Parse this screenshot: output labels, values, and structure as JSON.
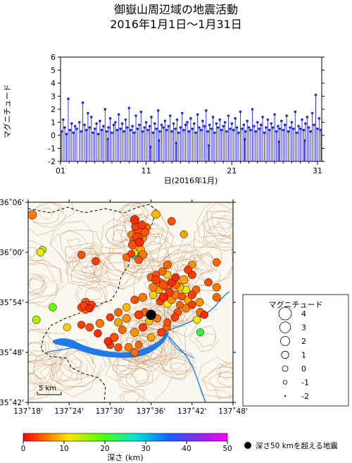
{
  "title_line1": "御嶽山周辺域の地震活動",
  "title_line2": "2016年1月1日～1月31日",
  "colors": {
    "stem": "#2222ee",
    "dot": "#1b2bd8",
    "contour": "#c9925c",
    "water": "#1f7be6",
    "border": "#000000"
  },
  "chart_data": [
    {
      "type": "stem",
      "ylabel": "マグニチュード",
      "xlabel": "日(2016年1月)",
      "xlim": [
        1,
        31.5
      ],
      "ylim": [
        -2,
        6
      ],
      "yticks": [
        "-2",
        "-1",
        "0",
        "1",
        "2",
        "3",
        "4",
        "5",
        "6"
      ],
      "xticks": [
        {
          "day": 1,
          "label": "01"
        },
        {
          "day": 11,
          "label": "11"
        },
        {
          "day": 21,
          "label": "21"
        },
        {
          "day": 31,
          "label": "31"
        }
      ],
      "events": [
        [
          1.1,
          0.3
        ],
        [
          1.3,
          1.2
        ],
        [
          1.5,
          0.6
        ],
        [
          1.7,
          0.1
        ],
        [
          1.9,
          2.8
        ],
        [
          2.1,
          0.4
        ],
        [
          2.3,
          0.9
        ],
        [
          2.5,
          0.2
        ],
        [
          2.7,
          0.7
        ],
        [
          2.9,
          0.5
        ],
        [
          3.2,
          1.0
        ],
        [
          3.4,
          0.3
        ],
        [
          3.6,
          2.5
        ],
        [
          3.8,
          0.8
        ],
        [
          4.0,
          0.4
        ],
        [
          4.2,
          1.7
        ],
        [
          4.4,
          0.6
        ],
        [
          4.6,
          1.4
        ],
        [
          4.8,
          0.2
        ],
        [
          5.0,
          0.5
        ],
        [
          5.2,
          0.9
        ],
        [
          5.4,
          0.1
        ],
        [
          5.6,
          1.1
        ],
        [
          5.8,
          0.4
        ],
        [
          6.0,
          0.7
        ],
        [
          6.2,
          2.0
        ],
        [
          6.4,
          0.3
        ],
        [
          6.6,
          0.6
        ],
        [
          6.8,
          1.3
        ],
        [
          7.0,
          0.2
        ],
        [
          7.2,
          0.8
        ],
        [
          7.4,
          1.0
        ],
        [
          7.6,
          0.4
        ],
        [
          7.8,
          1.6
        ],
        [
          8.0,
          0.5
        ],
        [
          8.2,
          0.9
        ],
        [
          8.4,
          0.3
        ],
        [
          8.6,
          1.2
        ],
        [
          8.8,
          0.6
        ],
        [
          9.0,
          2.1
        ],
        [
          9.2,
          0.4
        ],
        [
          9.4,
          0.7
        ],
        [
          9.6,
          0.2
        ],
        [
          9.8,
          1.5
        ],
        [
          10.0,
          0.5
        ],
        [
          10.2,
          0.8
        ],
        [
          10.4,
          1.8
        ],
        [
          10.6,
          0.3
        ],
        [
          10.8,
          0.6
        ],
        [
          11.0,
          1.0
        ],
        [
          11.2,
          0.4
        ],
        [
          11.4,
          0.7
        ],
        [
          11.6,
          1.4
        ],
        [
          11.8,
          0.2
        ],
        [
          12.0,
          0.9
        ],
        [
          12.2,
          0.5
        ],
        [
          12.4,
          1.9
        ],
        [
          12.6,
          0.3
        ],
        [
          12.8,
          0.8
        ],
        [
          13.0,
          0.6
        ],
        [
          13.2,
          1.1
        ],
        [
          13.4,
          0.4
        ],
        [
          13.6,
          0.7
        ],
        [
          13.8,
          1.5
        ],
        [
          14.0,
          0.3
        ],
        [
          14.2,
          0.9
        ],
        [
          14.4,
          0.5
        ],
        [
          14.6,
          1.2
        ],
        [
          14.8,
          0.2
        ],
        [
          15.0,
          0.6
        ],
        [
          15.2,
          1.7
        ],
        [
          15.4,
          0.4
        ],
        [
          15.6,
          0.8
        ],
        [
          15.8,
          1.0
        ],
        [
          16.0,
          0.3
        ],
        [
          16.2,
          1.3
        ],
        [
          16.4,
          0.5
        ],
        [
          16.6,
          0.9
        ],
        [
          16.8,
          0.2
        ],
        [
          17.0,
          1.6
        ],
        [
          17.2,
          0.6
        ],
        [
          17.4,
          0.4
        ],
        [
          17.6,
          1.1
        ],
        [
          17.8,
          0.7
        ],
        [
          18.0,
          1.9
        ],
        [
          18.2,
          0.3
        ],
        [
          18.4,
          0.8
        ],
        [
          18.6,
          0.5
        ],
        [
          18.8,
          1.4
        ],
        [
          19.0,
          0.2
        ],
        [
          19.2,
          0.9
        ],
        [
          19.4,
          0.6
        ],
        [
          19.6,
          1.2
        ],
        [
          19.8,
          0.4
        ],
        [
          20.0,
          0.7
        ],
        [
          20.2,
          1.0
        ],
        [
          20.4,
          0.3
        ],
        [
          20.6,
          1.5
        ],
        [
          20.8,
          0.5
        ],
        [
          21.0,
          0.9
        ],
        [
          21.2,
          0.4
        ],
        [
          21.4,
          1.3
        ],
        [
          21.6,
          0.6
        ],
        [
          21.8,
          0.2
        ],
        [
          22.0,
          1.8
        ],
        [
          22.2,
          0.5
        ],
        [
          22.4,
          0.8
        ],
        [
          22.6,
          0.3
        ],
        [
          22.8,
          1.1
        ],
        [
          23.0,
          0.6
        ],
        [
          23.2,
          0.4
        ],
        [
          23.4,
          2.0
        ],
        [
          23.6,
          0.7
        ],
        [
          23.8,
          0.3
        ],
        [
          24.0,
          1.0
        ],
        [
          24.2,
          0.5
        ],
        [
          24.4,
          0.8
        ],
        [
          24.6,
          1.4
        ],
        [
          24.8,
          0.2
        ],
        [
          25.0,
          0.6
        ],
        [
          25.2,
          1.2
        ],
        [
          25.4,
          0.4
        ],
        [
          25.6,
          0.9
        ],
        [
          25.8,
          0.6
        ],
        [
          26.0,
          1.6
        ],
        [
          26.2,
          0.3
        ],
        [
          26.4,
          0.7
        ],
        [
          26.6,
          0.5
        ],
        [
          26.8,
          1.1
        ],
        [
          27.0,
          0.4
        ],
        [
          27.2,
          0.8
        ],
        [
          27.4,
          1.5
        ],
        [
          27.6,
          0.3
        ],
        [
          27.8,
          0.6
        ],
        [
          28.0,
          1.0
        ],
        [
          28.2,
          0.5
        ],
        [
          28.4,
          1.8
        ],
        [
          28.6,
          0.2
        ],
        [
          28.8,
          0.7
        ],
        [
          29.0,
          0.5
        ],
        [
          29.2,
          1.2
        ],
        [
          29.4,
          0.4
        ],
        [
          29.6,
          0.9
        ],
        [
          29.8,
          1.4
        ],
        [
          30.0,
          0.6
        ],
        [
          30.2,
          0.3
        ],
        [
          30.4,
          1.7
        ],
        [
          30.6,
          0.8
        ],
        [
          30.8,
          3.1
        ],
        [
          31.0,
          0.5
        ],
        [
          31.2,
          1.3
        ],
        [
          31.4,
          0.4
        ],
        [
          11.5,
          -0.9
        ],
        [
          12.5,
          -0.4
        ],
        [
          14.5,
          -0.6
        ],
        [
          18.3,
          -0.8
        ],
        [
          22.5,
          -0.3
        ],
        [
          26.5,
          -0.5
        ],
        [
          6.5,
          -0.3
        ],
        [
          29.5,
          -0.4
        ]
      ]
    },
    {
      "type": "scatter",
      "x_ticklabels": [
        "137˚18'",
        "137˚24'",
        "137˚30'",
        "137˚36'",
        "137˚42'",
        "137˚48'"
      ],
      "y_ticklabels": [
        "36˚06'",
        "36˚00'",
        "35˚54'",
        "35˚48'",
        "35˚42'"
      ],
      "xlim": [
        137.3,
        137.8
      ],
      "ylim": [
        35.7,
        36.1
      ],
      "scalebar_label": "5 km",
      "colorbar": {
        "label": "深さ (km)",
        "ticks": [
          "0",
          "10",
          "20",
          "30",
          "40",
          "50"
        ],
        "range": [
          0,
          50
        ]
      },
      "deep_event_label": "深さ50 kmを超える地震",
      "legend": {
        "title": "マグニチュード",
        "entries": [
          "4",
          "3",
          "2",
          "1",
          "0",
          "-1",
          "-2"
        ]
      },
      "points": [
        [
          137.56,
          36.065,
          1.8,
          2
        ],
        [
          137.562,
          36.052,
          1.5,
          3
        ],
        [
          137.57,
          36.045,
          2.0,
          4
        ],
        [
          137.575,
          36.038,
          1.4,
          6
        ],
        [
          137.566,
          36.03,
          1.9,
          3
        ],
        [
          137.558,
          36.024,
          1.3,
          5
        ],
        [
          137.572,
          36.02,
          1.6,
          2
        ],
        [
          137.58,
          36.028,
          1.2,
          7
        ],
        [
          137.585,
          36.04,
          1.5,
          4
        ],
        [
          137.552,
          36.035,
          1.1,
          6
        ],
        [
          137.578,
          36.055,
          1.3,
          3
        ],
        [
          137.59,
          36.05,
          1.0,
          5
        ],
        [
          137.568,
          36.012,
          1.4,
          9
        ],
        [
          137.555,
          36.015,
          1.7,
          4
        ],
        [
          137.575,
          36.005,
          1.2,
          8
        ],
        [
          137.56,
          36.0,
          1.0,
          12
        ],
        [
          137.58,
          35.995,
          1.6,
          6
        ],
        [
          137.54,
          35.99,
          1.1,
          5
        ],
        [
          137.57,
          35.985,
          1.3,
          4
        ],
        [
          137.552,
          35.997,
          0.9,
          3
        ],
        [
          137.612,
          36.076,
          1.6,
          9
        ],
        [
          137.65,
          36.062,
          1.3,
          4
        ],
        [
          137.68,
          36.036,
          1.0,
          8
        ],
        [
          137.565,
          36.045,
          1.9,
          5
        ],
        [
          137.572,
          36.035,
          2.2,
          6
        ],
        [
          137.43,
          35.995,
          1.1,
          4
        ],
        [
          137.465,
          35.982,
          1.2,
          3
        ],
        [
          137.64,
          35.975,
          1.5,
          5
        ],
        [
          137.7,
          35.955,
          1.3,
          3
        ],
        [
          137.7,
          35.975,
          1.1,
          7
        ],
        [
          137.76,
          35.98,
          1.2,
          5
        ],
        [
          137.76,
          35.93,
          1.3,
          6
        ],
        [
          137.74,
          35.94,
          1.2,
          4
        ],
        [
          137.76,
          35.91,
          1.4,
          5
        ],
        [
          137.73,
          35.875,
          1.1,
          2
        ],
        [
          137.6,
          35.95,
          1.4,
          5
        ],
        [
          137.612,
          35.945,
          1.6,
          3
        ],
        [
          137.622,
          35.94,
          1.3,
          7
        ],
        [
          137.63,
          35.935,
          1.8,
          4
        ],
        [
          137.64,
          35.93,
          1.5,
          6
        ],
        [
          137.62,
          35.925,
          1.2,
          8
        ],
        [
          137.65,
          35.94,
          1.4,
          2
        ],
        [
          137.66,
          35.935,
          1.7,
          5
        ],
        [
          137.67,
          35.93,
          1.3,
          9
        ],
        [
          137.645,
          35.92,
          1.6,
          3
        ],
        [
          137.66,
          35.915,
          1.5,
          6
        ],
        [
          137.675,
          35.912,
          1.2,
          4
        ],
        [
          137.69,
          35.905,
          1.4,
          8
        ],
        [
          137.63,
          35.91,
          1.8,
          2
        ],
        [
          137.605,
          35.915,
          1.1,
          10
        ],
        [
          137.65,
          35.905,
          1.3,
          7
        ],
        [
          137.67,
          35.895,
          1.0,
          5
        ],
        [
          137.64,
          35.898,
          1.6,
          11
        ],
        [
          137.622,
          35.902,
          1.2,
          3
        ],
        [
          137.605,
          35.93,
          1.5,
          6
        ],
        [
          137.612,
          35.955,
          1.1,
          4
        ],
        [
          137.685,
          35.925,
          1.3,
          12
        ],
        [
          137.7,
          35.915,
          1.5,
          3
        ],
        [
          137.71,
          35.925,
          1.2,
          5
        ],
        [
          137.718,
          35.9,
          1.4,
          7
        ],
        [
          137.66,
          35.95,
          1.1,
          2
        ],
        [
          137.68,
          35.945,
          1.6,
          8
        ],
        [
          137.69,
          35.965,
          1.2,
          3
        ],
        [
          137.64,
          35.955,
          1.0,
          10
        ],
        [
          137.628,
          35.962,
          1.3,
          5
        ],
        [
          137.58,
          35.91,
          1.5,
          6
        ],
        [
          137.56,
          35.905,
          1.3,
          4
        ],
        [
          137.54,
          35.89,
          1.2,
          9
        ],
        [
          137.57,
          35.875,
          1.6,
          3
        ],
        [
          137.54,
          35.868,
          1.4,
          7
        ],
        [
          137.52,
          35.88,
          1.3,
          5
        ],
        [
          137.5,
          35.87,
          1.1,
          3
        ],
        [
          137.52,
          35.86,
          1.4,
          8
        ],
        [
          137.475,
          35.858,
          1.5,
          6
        ],
        [
          137.45,
          35.85,
          1.3,
          4
        ],
        [
          137.43,
          35.855,
          1.1,
          3
        ],
        [
          137.47,
          35.838,
          1.2,
          2
        ],
        [
          137.51,
          35.83,
          1.6,
          4
        ],
        [
          137.53,
          35.845,
          1.3,
          5
        ],
        [
          137.56,
          35.84,
          1.5,
          7
        ],
        [
          137.58,
          35.85,
          1.4,
          3
        ],
        [
          137.595,
          35.862,
          1.2,
          9
        ],
        [
          137.585,
          35.88,
          1.3,
          5
        ],
        [
          137.52,
          35.81,
          1.1,
          4
        ],
        [
          137.545,
          35.81,
          1.3,
          6
        ],
        [
          137.57,
          35.815,
          1.0,
          5
        ],
        [
          137.6,
          35.83,
          1.2,
          8
        ],
        [
          137.625,
          35.84,
          1.3,
          3
        ],
        [
          137.638,
          35.85,
          1.1,
          5
        ],
        [
          137.495,
          35.822,
          1.3,
          2
        ],
        [
          137.44,
          35.9,
          1.6,
          5
        ],
        [
          137.445,
          35.895,
          1.4,
          4
        ],
        [
          137.436,
          35.893,
          1.3,
          3
        ],
        [
          137.45,
          35.888,
          1.2,
          2
        ],
        [
          137.44,
          35.885,
          1.1,
          5
        ],
        [
          137.43,
          35.89,
          1.3,
          4
        ],
        [
          137.455,
          35.895,
          1.2,
          3
        ],
        [
          137.32,
          35.865,
          1.3,
          15
        ],
        [
          137.36,
          35.89,
          1.2,
          18
        ],
        [
          137.395,
          35.85,
          1.0,
          10
        ],
        [
          137.31,
          36.075,
          1.8,
          6
        ],
        [
          137.33,
          36.0,
          1.2,
          12
        ],
        [
          137.335,
          36.005,
          1.0,
          14
        ],
        [
          137.56,
          35.995,
          1.5,
          28
        ],
        [
          137.72,
          35.84,
          1.0,
          22
        ],
        [
          137.56,
          35.8,
          1.4,
          5
        ],
        [
          137.5,
          35.815,
          1.2,
          3
        ],
        [
          137.665,
          35.88,
          1.3,
          4
        ],
        [
          137.685,
          35.888,
          1.4,
          6
        ],
        [
          137.7,
          35.895,
          1.2,
          3
        ],
        [
          137.72,
          35.88,
          1.5,
          5
        ],
        [
          137.64,
          35.86,
          1.0,
          4
        ],
        [
          137.615,
          35.868,
          1.2,
          6
        ],
        [
          137.658,
          35.87,
          1.3,
          3
        ],
        [
          137.712,
          35.865,
          1.1,
          12
        ]
      ],
      "deep_points": [
        [
          137.6,
          35.875,
          2.6
        ]
      ]
    }
  ]
}
